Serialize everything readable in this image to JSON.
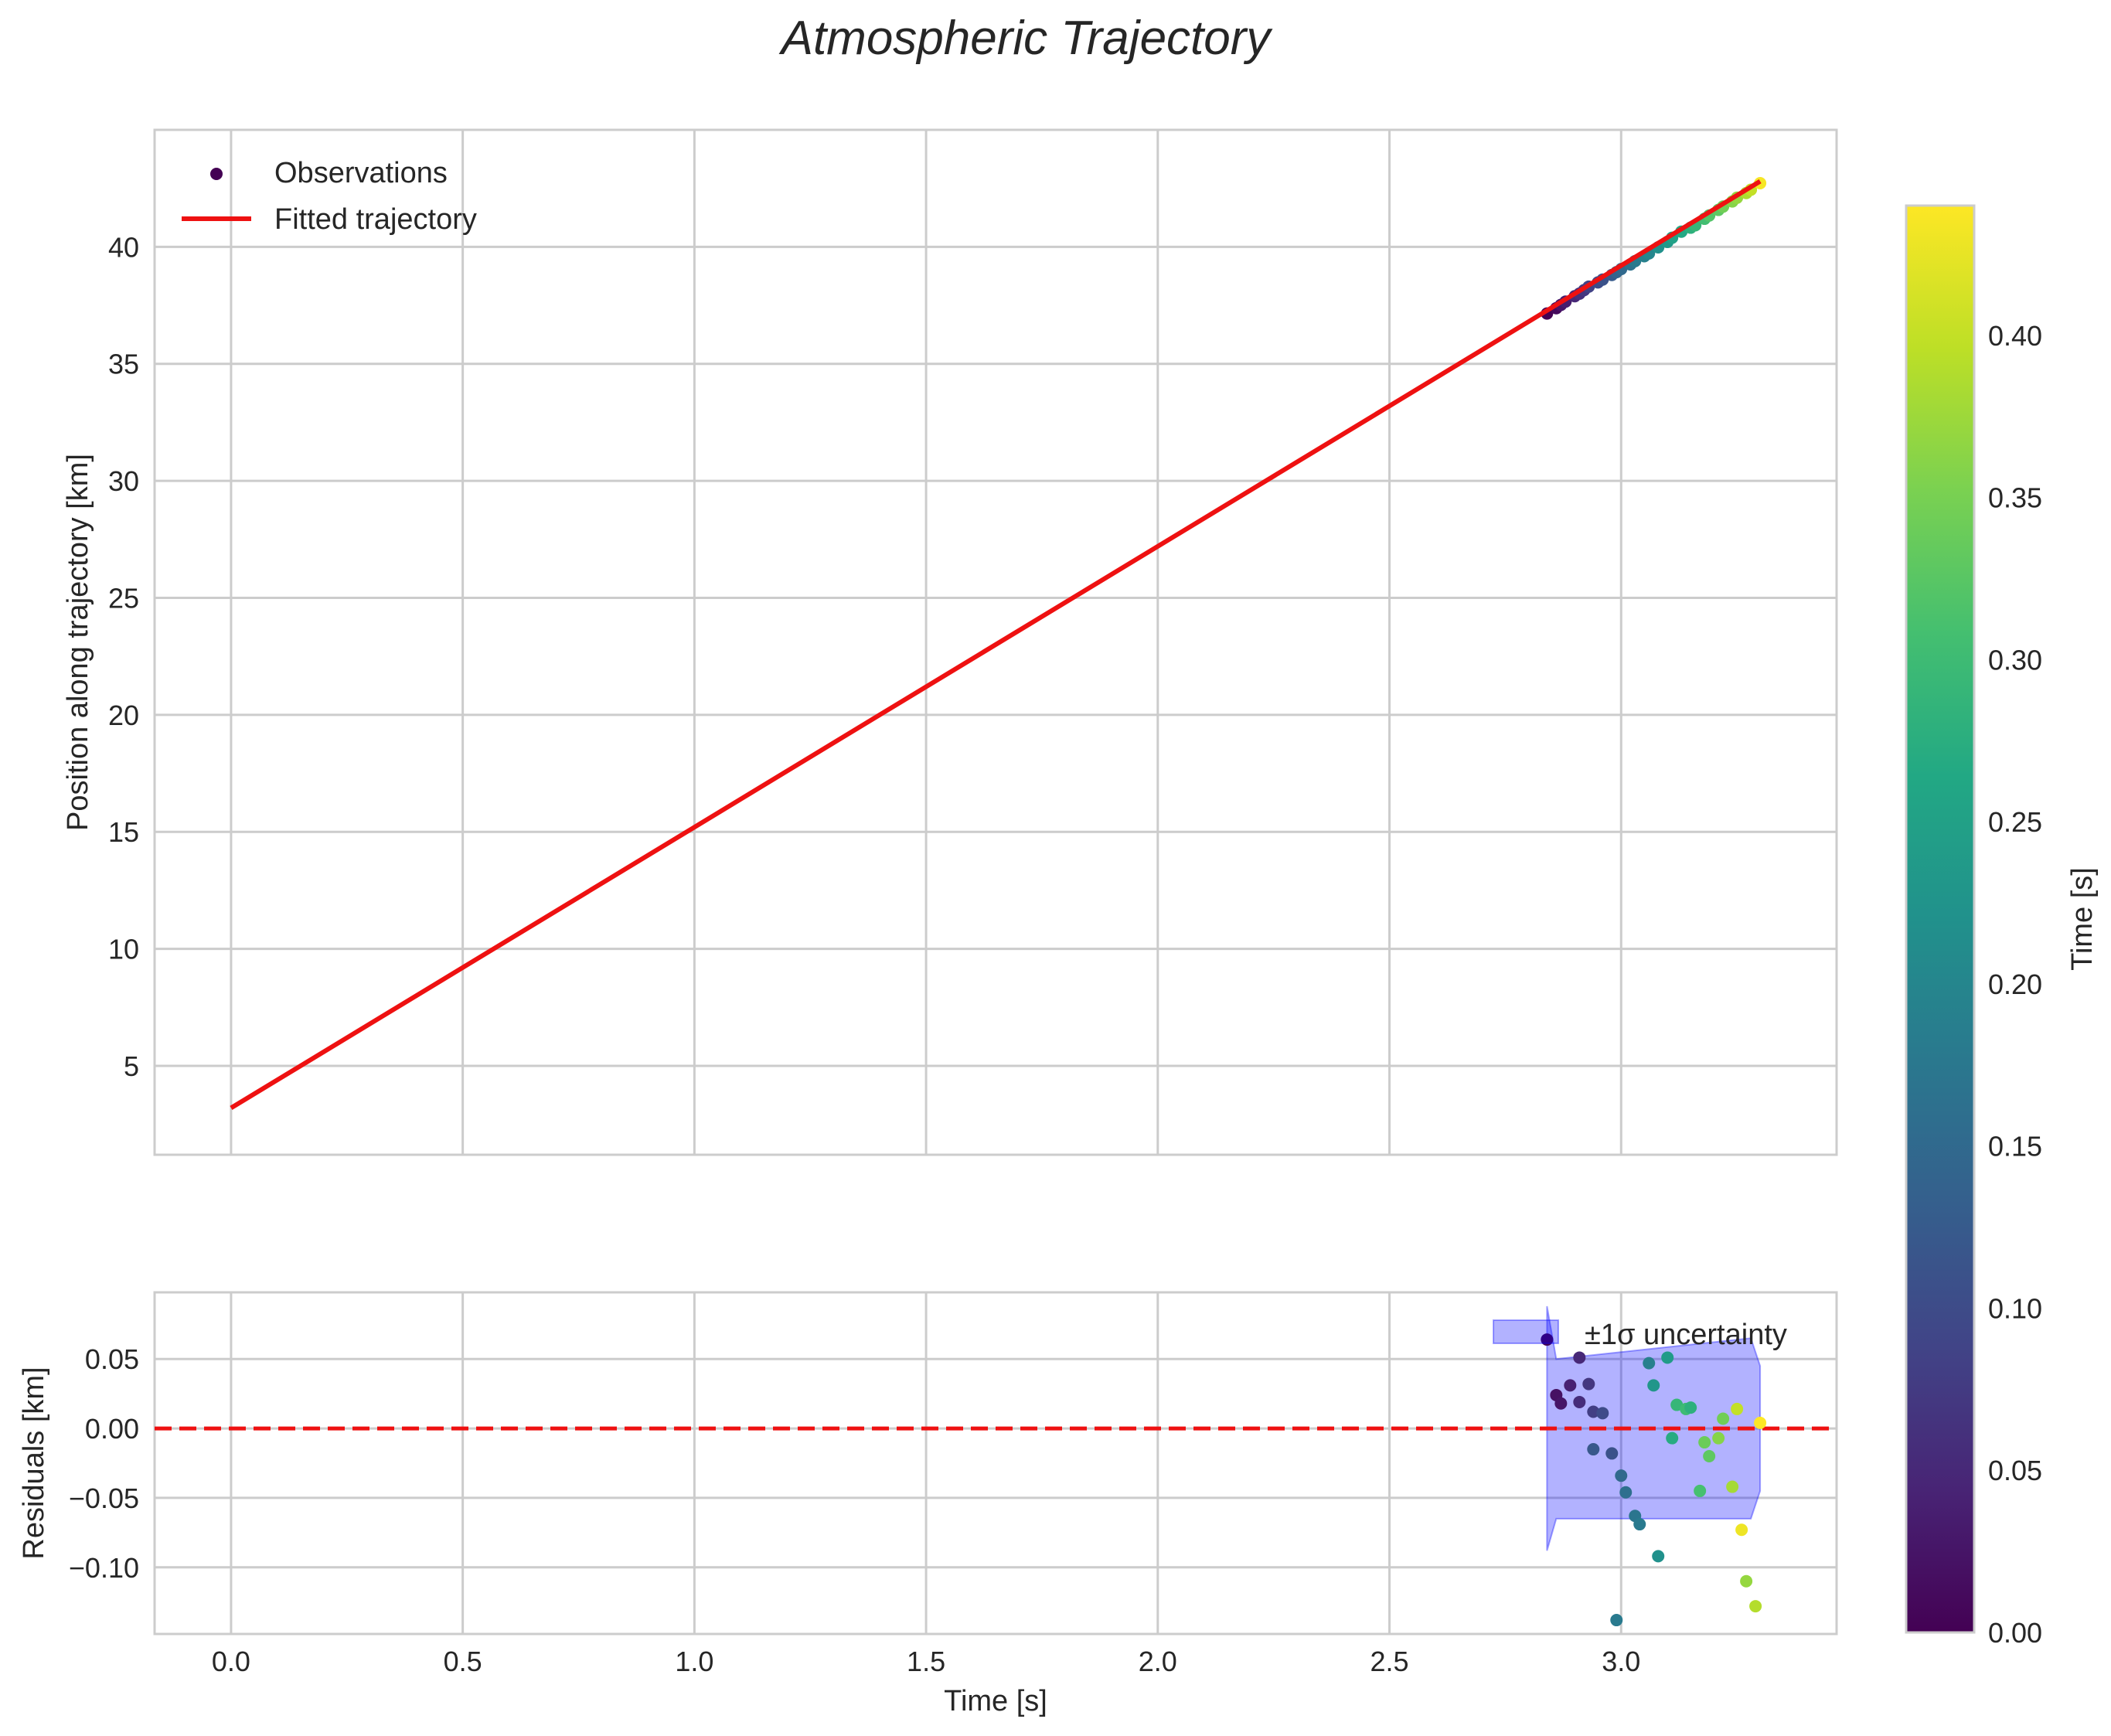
{
  "chart_data": {
    "title": "Atmospheric Trajectory",
    "main_panel": {
      "type": "scatter+line",
      "xlabel": "",
      "ylabel": "Position along trajectory [km]",
      "xlim": [
        -0.165,
        3.465
      ],
      "ylim": [
        1.2,
        45.0
      ],
      "xticks": [
        0.0,
        0.5,
        1.0,
        1.5,
        2.0,
        2.5,
        3.0
      ],
      "yticks": [
        5,
        10,
        15,
        20,
        25,
        30,
        35,
        40
      ],
      "ytick_labels": [
        "5",
        "10",
        "15",
        "20",
        "25",
        "30",
        "35",
        "40"
      ],
      "grid": true,
      "legend_position": "upper-left",
      "legend": [
        "Observations",
        "Fitted trajectory"
      ],
      "fitted_trajectory": {
        "x": [
          0.0,
          3.3
        ],
        "y": [
          3.2,
          42.8
        ]
      },
      "observations": {
        "t": [
          2.84,
          2.86,
          2.87,
          2.88,
          2.9,
          2.91,
          2.92,
          2.93,
          2.95,
          2.96,
          2.98,
          2.99,
          3.0,
          3.02,
          3.03,
          3.05,
          3.06,
          3.08,
          3.1,
          3.11,
          3.13,
          3.15,
          3.16,
          3.18,
          3.19,
          3.21,
          3.22,
          3.24,
          3.25,
          3.27,
          3.28,
          3.3
        ],
        "position": [
          37.15,
          37.38,
          37.52,
          37.66,
          37.89,
          38.0,
          38.15,
          38.3,
          38.48,
          38.6,
          38.8,
          38.92,
          39.05,
          39.25,
          39.39,
          39.6,
          39.72,
          39.98,
          40.21,
          40.39,
          40.65,
          40.82,
          40.92,
          41.2,
          41.34,
          41.58,
          41.72,
          41.94,
          42.1,
          42.3,
          42.44,
          42.72
        ],
        "color_time": [
          0.0,
          0.01,
          0.025,
          0.035,
          0.05,
          0.06,
          0.07,
          0.085,
          0.1,
          0.11,
          0.125,
          0.14,
          0.15,
          0.165,
          0.18,
          0.19,
          0.2,
          0.22,
          0.235,
          0.25,
          0.265,
          0.28,
          0.29,
          0.305,
          0.32,
          0.33,
          0.345,
          0.36,
          0.37,
          0.385,
          0.4,
          0.435
        ]
      }
    },
    "residual_panel": {
      "type": "scatter",
      "xlabel": "Time [s]",
      "ylabel": "Residuals [km]",
      "xlim": [
        -0.165,
        3.465
      ],
      "ylim": [
        -0.148,
        0.098
      ],
      "xticks": [
        0.0,
        0.5,
        1.0,
        1.5,
        2.0,
        2.5,
        3.0
      ],
      "xtick_labels": [
        "0.0",
        "0.5",
        "1.0",
        "1.5",
        "2.0",
        "2.5",
        "3.0"
      ],
      "yticks": [
        -0.1,
        -0.05,
        0.0,
        0.05
      ],
      "ytick_labels": [
        "−0.10",
        "−0.05",
        "0.00",
        "0.05"
      ],
      "zero_line": {
        "y": 0.0,
        "style": "dashed",
        "color": "#ee1111"
      },
      "uncertainty_band": {
        "label": "±1σ uncertainty",
        "color": "#0000ff",
        "alpha": 0.3,
        "x": [
          2.84,
          2.86,
          3.28,
          3.3
        ],
        "upper": [
          0.088,
          0.05,
          0.065,
          0.045
        ],
        "lower": [
          -0.088,
          -0.065,
          -0.065,
          -0.045
        ]
      },
      "legend_position": "upper-right",
      "legend": [
        "±1σ uncertainty"
      ],
      "points": {
        "t": [
          2.84,
          2.86,
          2.87,
          2.89,
          2.91,
          2.91,
          2.93,
          2.94,
          2.94,
          2.96,
          2.98,
          2.99,
          3.0,
          3.01,
          3.03,
          3.04,
          3.06,
          3.07,
          3.08,
          3.1,
          3.11,
          3.12,
          3.14,
          3.15,
          3.17,
          3.18,
          3.19,
          3.21,
          3.22,
          3.24,
          3.25,
          3.26,
          3.27,
          3.29,
          3.3
        ],
        "residual": [
          0.064,
          0.024,
          0.018,
          0.031,
          0.051,
          0.019,
          0.032,
          0.012,
          -0.015,
          0.011,
          -0.018,
          -0.138,
          -0.034,
          -0.046,
          -0.063,
          -0.069,
          0.047,
          0.031,
          -0.092,
          0.051,
          -0.007,
          0.017,
          0.014,
          0.015,
          -0.045,
          -0.01,
          -0.02,
          -0.007,
          0.007,
          -0.042,
          0.014,
          -0.073,
          -0.11,
          -0.128,
          0.004
        ],
        "color_time": [
          0.0,
          0.02,
          0.025,
          0.04,
          0.05,
          0.055,
          0.07,
          0.08,
          0.12,
          0.1,
          0.11,
          0.18,
          0.15,
          0.16,
          0.17,
          0.18,
          0.19,
          0.23,
          0.22,
          0.24,
          0.27,
          0.29,
          0.3,
          0.28,
          0.31,
          0.34,
          0.33,
          0.36,
          0.345,
          0.38,
          0.4,
          0.43,
          0.37,
          0.39,
          0.44
        ]
      }
    },
    "colorbar": {
      "label": "Time [s]",
      "range": [
        0.0,
        0.44
      ],
      "ticks": [
        0.0,
        0.05,
        0.1,
        0.15,
        0.2,
        0.25,
        0.3,
        0.35,
        0.4
      ],
      "tick_labels": [
        "0.00",
        "0.05",
        "0.10",
        "0.15",
        "0.20",
        "0.25",
        "0.30",
        "0.35",
        "0.40"
      ],
      "colormap": "viridis"
    }
  },
  "colors": {
    "fit_line": "#ee1111",
    "grid": "#cccccc",
    "frame": "#cccccc",
    "text": "#262626"
  }
}
